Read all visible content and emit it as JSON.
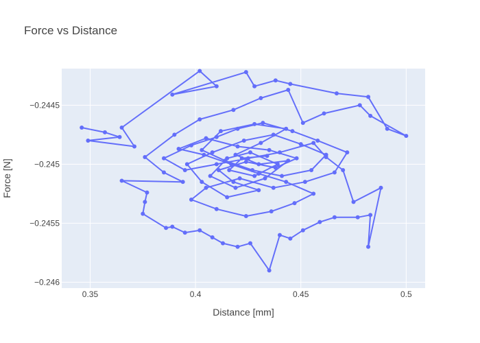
{
  "chart_data": {
    "type": "line",
    "mode": "lines+markers",
    "title": "Force vs Distance",
    "xlabel": "Distance [mm]",
    "ylabel": "Force [N]",
    "xlim": [
      0.3365,
      0.509
    ],
    "ylim": [
      -0.24605,
      -0.24419
    ],
    "xticks": [
      0.35,
      0.4,
      0.45,
      0.5
    ],
    "xtick_labels": [
      "0.35",
      "0.4",
      "0.45",
      "0.5"
    ],
    "yticks": [
      -0.2445,
      -0.245,
      -0.2455,
      -0.246
    ],
    "ytick_labels": [
      "−0.2445",
      "−0.245",
      "−0.2455",
      "−0.246"
    ],
    "grid": true,
    "series": [
      {
        "color": "#636efa",
        "points": [
          [
            0.346,
            -0.24469
          ],
          [
            0.357,
            -0.24473
          ],
          [
            0.364,
            -0.24477
          ],
          [
            0.349,
            -0.2448
          ],
          [
            0.371,
            -0.24485
          ],
          [
            0.365,
            -0.24469
          ],
          [
            0.402,
            -0.24421
          ],
          [
            0.41,
            -0.24434
          ],
          [
            0.389,
            -0.24441
          ],
          [
            0.424,
            -0.24422
          ],
          [
            0.428,
            -0.24434
          ],
          [
            0.438,
            -0.24429
          ],
          [
            0.445,
            -0.24432
          ],
          [
            0.467,
            -0.2444
          ],
          [
            0.482,
            -0.24443
          ],
          [
            0.491,
            -0.2447
          ],
          [
            0.5,
            -0.24476
          ],
          [
            0.483,
            -0.24459
          ],
          [
            0.478,
            -0.2445
          ],
          [
            0.461,
            -0.24457
          ],
          [
            0.451,
            -0.24465
          ],
          [
            0.444,
            -0.24437
          ],
          [
            0.431,
            -0.24444
          ],
          [
            0.418,
            -0.24454
          ],
          [
            0.402,
            -0.24462
          ],
          [
            0.39,
            -0.24475
          ],
          [
            0.376,
            -0.24494
          ],
          [
            0.385,
            -0.24507
          ],
          [
            0.394,
            -0.24515
          ],
          [
            0.365,
            -0.24514
          ],
          [
            0.377,
            -0.24524
          ],
          [
            0.376,
            -0.24532
          ],
          [
            0.375,
            -0.24542
          ],
          [
            0.386,
            -0.24554
          ],
          [
            0.389,
            -0.24553
          ],
          [
            0.395,
            -0.24558
          ],
          [
            0.402,
            -0.24556
          ],
          [
            0.408,
            -0.24562
          ],
          [
            0.413,
            -0.24567
          ],
          [
            0.42,
            -0.2457
          ],
          [
            0.426,
            -0.24567
          ],
          [
            0.435,
            -0.2459
          ],
          [
            0.44,
            -0.2456
          ],
          [
            0.445,
            -0.24563
          ],
          [
            0.451,
            -0.24556
          ],
          [
            0.459,
            -0.24549
          ],
          [
            0.466,
            -0.24545
          ],
          [
            0.477,
            -0.24545
          ],
          [
            0.483,
            -0.24543
          ],
          [
            0.482,
            -0.2457
          ],
          [
            0.488,
            -0.2452
          ],
          [
            0.475,
            -0.24532
          ],
          [
            0.47,
            -0.24505
          ],
          [
            0.462,
            -0.24494
          ],
          [
            0.456,
            -0.24482
          ],
          [
            0.44,
            -0.2449
          ],
          [
            0.425,
            -0.24495
          ],
          [
            0.41,
            -0.245
          ],
          [
            0.395,
            -0.24505
          ],
          [
            0.385,
            -0.24495
          ],
          [
            0.398,
            -0.24484
          ],
          [
            0.41,
            -0.24477
          ],
          [
            0.42,
            -0.2447
          ],
          [
            0.432,
            -0.24465
          ],
          [
            0.446,
            -0.24472
          ],
          [
            0.458,
            -0.2448
          ],
          [
            0.472,
            -0.2449
          ],
          [
            0.466,
            -0.24507
          ],
          [
            0.452,
            -0.24515
          ],
          [
            0.437,
            -0.2452
          ],
          [
            0.421,
            -0.24512
          ],
          [
            0.405,
            -0.2452
          ],
          [
            0.398,
            -0.2453
          ],
          [
            0.41,
            -0.24538
          ],
          [
            0.424,
            -0.24544
          ],
          [
            0.436,
            -0.2454
          ],
          [
            0.447,
            -0.24533
          ],
          [
            0.456,
            -0.24525
          ],
          [
            0.443,
            -0.24515
          ],
          [
            0.43,
            -0.24508
          ],
          [
            0.417,
            -0.245
          ],
          [
            0.404,
            -0.24492
          ],
          [
            0.392,
            -0.24487
          ],
          [
            0.405,
            -0.24478
          ],
          [
            0.42,
            -0.24485
          ],
          [
            0.435,
            -0.24488
          ],
          [
            0.448,
            -0.24495
          ],
          [
            0.438,
            -0.24503
          ],
          [
            0.424,
            -0.24498
          ],
          [
            0.411,
            -0.24505
          ],
          [
            0.418,
            -0.24515
          ],
          [
            0.43,
            -0.24522
          ],
          [
            0.415,
            -0.24528
          ],
          [
            0.403,
            -0.24515
          ],
          [
            0.396,
            -0.245
          ],
          [
            0.408,
            -0.2449
          ],
          [
            0.423,
            -0.2448
          ],
          [
            0.437,
            -0.24475
          ],
          [
            0.45,
            -0.24483
          ],
          [
            0.462,
            -0.24492
          ],
          [
            0.455,
            -0.24505
          ],
          [
            0.441,
            -0.2451
          ],
          [
            0.427,
            -0.24505
          ],
          [
            0.414,
            -0.24497
          ],
          [
            0.403,
            -0.24488
          ],
          [
            0.412,
            -0.24472
          ],
          [
            0.428,
            -0.24466
          ],
          [
            0.443,
            -0.2447
          ],
          [
            0.431,
            -0.24482
          ],
          [
            0.419,
            -0.24492
          ],
          [
            0.43,
            -0.245
          ],
          [
            0.444,
            -0.24497
          ],
          [
            0.433,
            -0.24512
          ],
          [
            0.419,
            -0.2452
          ],
          [
            0.407,
            -0.2451
          ],
          [
            0.415,
            -0.24495
          ],
          [
            0.426,
            -0.2449
          ],
          [
            0.439,
            -0.245
          ],
          [
            0.428,
            -0.2451
          ],
          [
            0.416,
            -0.24505
          ],
          [
            0.422,
            -0.24495
          ],
          [
            0.434,
            -0.24493
          ]
        ]
      }
    ]
  }
}
